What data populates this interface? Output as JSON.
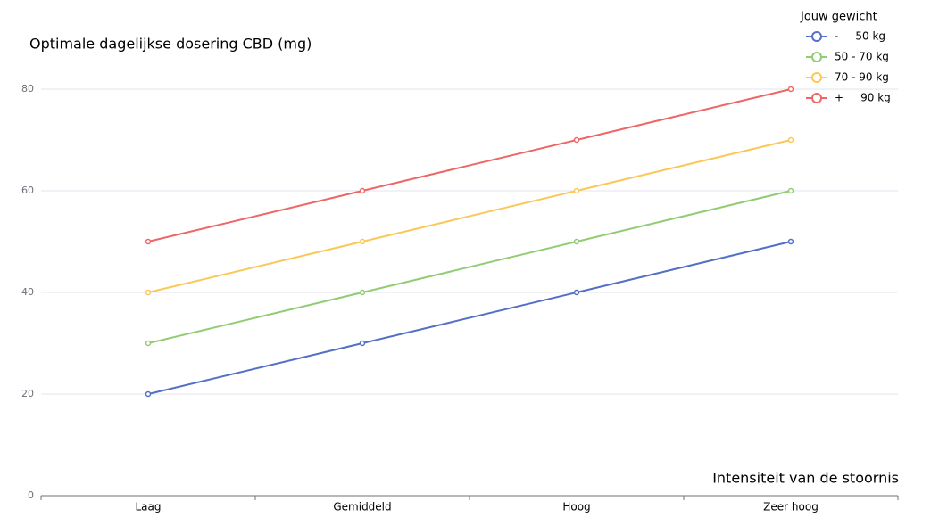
{
  "chart_data": {
    "type": "line",
    "title": "Optimale dagelijkse dosering CBD (mg)",
    "x_label": "Intensiteit van de stoornis",
    "legend_title": "Jouw gewicht",
    "categories": [
      "Laag",
      "Gemiddeld",
      "Hoog",
      "Zeer hoog"
    ],
    "series": [
      {
        "name": "-     50 kg",
        "color": "#5470c6",
        "values": [
          20,
          30,
          40,
          50
        ]
      },
      {
        "name": "50 - 70 kg",
        "color": "#91cc75",
        "values": [
          30,
          40,
          50,
          60
        ]
      },
      {
        "name": "70 - 90 kg",
        "color": "#fac858",
        "values": [
          40,
          50,
          60,
          70
        ]
      },
      {
        "name": "+     90 kg",
        "color": "#ee6666",
        "values": [
          50,
          60,
          70,
          80
        ]
      }
    ],
    "ylim": [
      0,
      80
    ],
    "yticks": [
      0,
      20,
      40,
      60,
      80
    ],
    "grid": true,
    "legend": "top-right"
  }
}
